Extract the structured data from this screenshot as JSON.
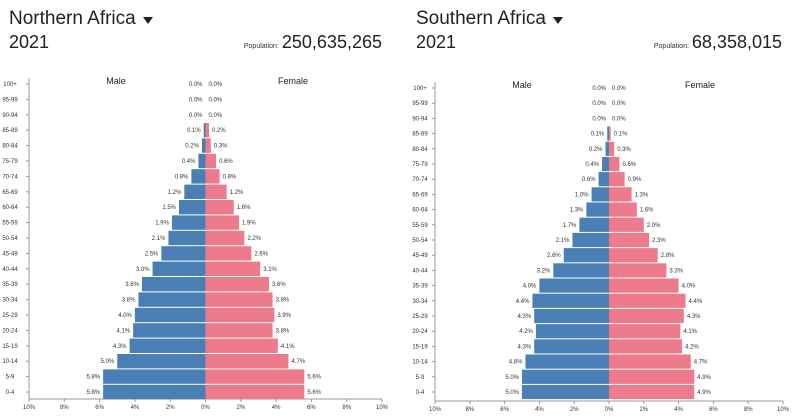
{
  "panels": [
    {
      "region": "Northern Africa",
      "year": "2021",
      "population_label": "Population:",
      "population_value": "250,635,265"
    },
    {
      "region": "Southern Africa",
      "year": "2021",
      "population_label": "Population:",
      "population_value": "68,358,015"
    }
  ],
  "colors": {
    "male": "#4a7fb5",
    "female": "#ee7b8c",
    "axis": "#999999"
  },
  "icons": {
    "dropdown": "caret-down-icon"
  },
  "chart_data": [
    {
      "type": "bar",
      "title": "Northern Africa",
      "categories": [
        "100+",
        "95-99",
        "90-94",
        "85-89",
        "80-84",
        "75-79",
        "70-74",
        "65-69",
        "60-64",
        "55-59",
        "50-54",
        "45-49",
        "40-44",
        "35-39",
        "30-34",
        "25-29",
        "20-24",
        "15-19",
        "10-14",
        "5-9",
        "0-4"
      ],
      "series": [
        {
          "name": "Male",
          "values": [
            0.0,
            0.0,
            0.0,
            0.1,
            0.2,
            0.4,
            0.8,
            1.2,
            1.5,
            1.9,
            2.1,
            2.5,
            3.0,
            3.6,
            3.8,
            4.0,
            4.1,
            4.3,
            5.0,
            5.8,
            5.8
          ]
        },
        {
          "name": "Female",
          "values": [
            0.0,
            0.0,
            0.0,
            0.2,
            0.3,
            0.6,
            0.8,
            1.2,
            1.6,
            1.9,
            2.2,
            2.6,
            3.1,
            3.6,
            3.8,
            3.9,
            3.8,
            4.1,
            4.7,
            5.6,
            5.6
          ]
        }
      ],
      "value_suffix": "%",
      "x_ticks": [
        "10%",
        "8%",
        "6%",
        "4%",
        "2%",
        "0%",
        "2%",
        "4%",
        "6%",
        "8%",
        "10%"
      ],
      "xlim": [
        -10,
        10
      ],
      "legend": "top"
    },
    {
      "type": "bar",
      "title": "Southern Africa",
      "categories": [
        "100+",
        "95-99",
        "90-94",
        "85-89",
        "80-84",
        "75-79",
        "70-74",
        "65-69",
        "60-64",
        "55-59",
        "50-54",
        "45-49",
        "40-44",
        "35-39",
        "30-34",
        "25-29",
        "20-24",
        "15-19",
        "10-14",
        "5-9",
        "0-4"
      ],
      "series": [
        {
          "name": "Male",
          "values": [
            0.0,
            0.0,
            0.0,
            0.1,
            0.2,
            0.4,
            0.6,
            1.0,
            1.3,
            1.7,
            2.1,
            2.6,
            3.2,
            4.0,
            4.4,
            4.3,
            4.2,
            4.3,
            4.8,
            5.0,
            5.0
          ]
        },
        {
          "name": "Female",
          "values": [
            0.0,
            0.0,
            0.0,
            0.1,
            0.3,
            0.6,
            0.9,
            1.3,
            1.6,
            2.0,
            2.3,
            2.8,
            3.3,
            4.0,
            4.4,
            4.3,
            4.1,
            4.2,
            4.7,
            4.9,
            4.9
          ]
        }
      ],
      "value_suffix": "%",
      "x_ticks": [
        "10%",
        "8%",
        "6%",
        "4%",
        "2%",
        "0%",
        "2%",
        "4%",
        "6%",
        "8%",
        "10%"
      ],
      "xlim": [
        -10,
        10
      ],
      "legend": "top"
    }
  ]
}
